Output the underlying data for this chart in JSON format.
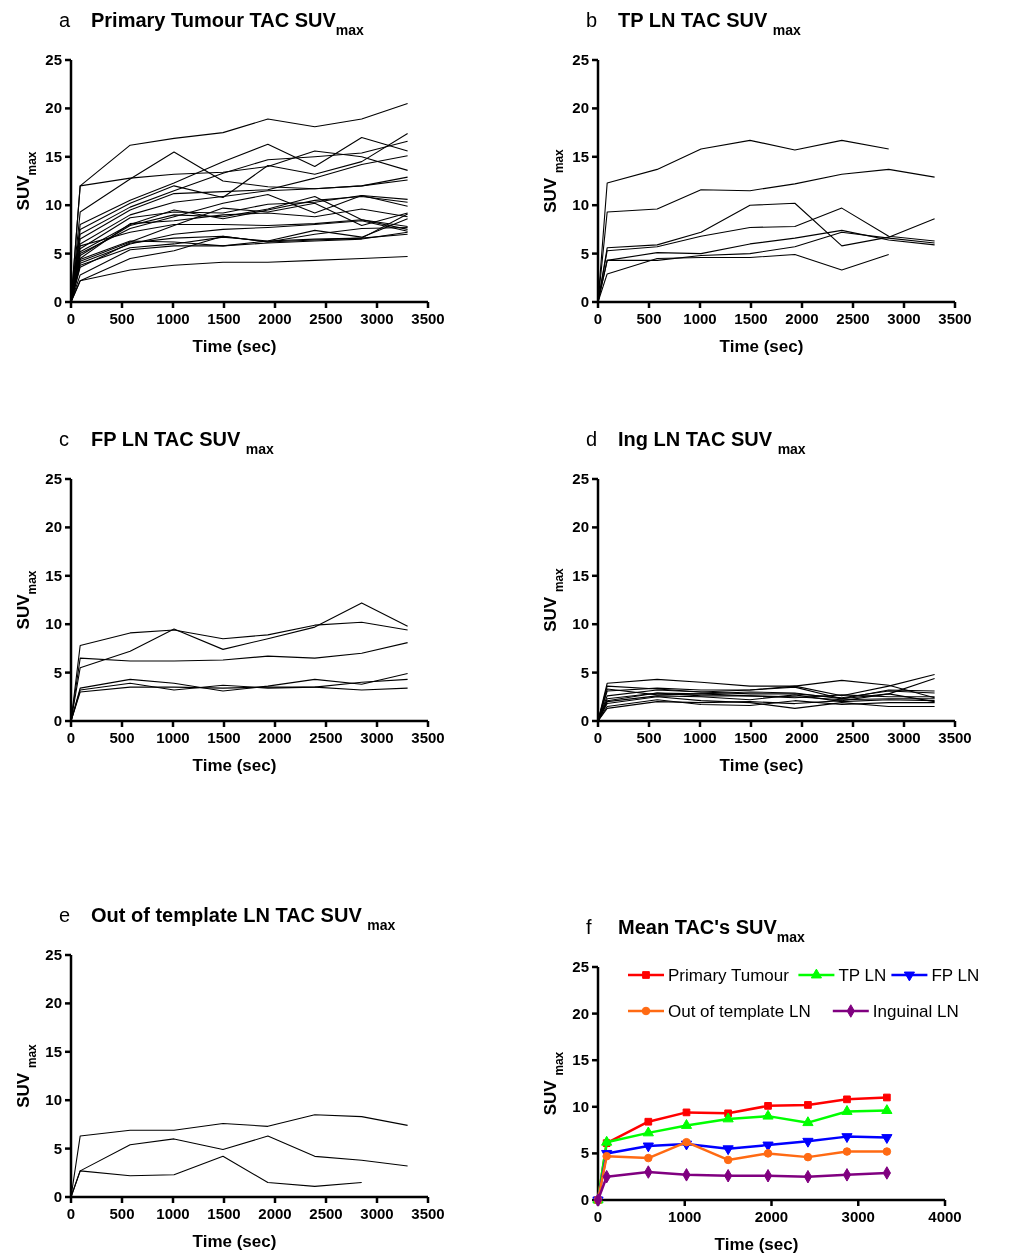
{
  "chart_data": [
    {
      "type": "line",
      "title": "Primary Tumour TAC SUV$_{max}$",
      "annotations": [
        "a"
      ],
      "xlabel": "Time (sec)",
      "ylabel": "SUV$_{max}$",
      "xlim": [
        0,
        3500
      ],
      "xticks": [
        0,
        500,
        1000,
        1500,
        2000,
        2500,
        3000,
        3500
      ],
      "ylim": [
        0,
        25
      ],
      "yticks": [
        0,
        5,
        10,
        15,
        20,
        25
      ],
      "grid": false,
      "legend": false,
      "marker": "none",
      "line_style": "solid",
      "x": [
        0,
        90,
        580,
        1010,
        1490,
        1930,
        2390,
        2850,
        3300
      ],
      "series": [
        {
          "color": "#000000",
          "values": [
            0,
            12.0,
            16.2,
            16.9,
            17.5,
            18.9,
            18.1,
            18.9,
            20.5
          ]
        },
        {
          "color": "#000000",
          "values": [
            0,
            9.3,
            12.7,
            15.5,
            12.5,
            11.9,
            11.7,
            12.0,
            12.9
          ]
        },
        {
          "color": "#000000",
          "values": [
            0,
            12.0,
            12.8,
            13.2,
            13.4,
            14.0,
            15.6,
            15.0,
            13.6
          ]
        },
        {
          "color": "#000000",
          "values": [
            0,
            7.5,
            10.2,
            12.0,
            10.8,
            14.1,
            13.2,
            14.5,
            17.4
          ]
        },
        {
          "color": "#000000",
          "values": [
            0,
            8.0,
            10.5,
            12.3,
            14.5,
            16.3,
            14.0,
            17.0,
            15.6
          ]
        },
        {
          "color": "#000000",
          "values": [
            0,
            7.0,
            9.8,
            11.5,
            13.3,
            14.7,
            15.0,
            15.4,
            16.6
          ]
        },
        {
          "color": "#000000",
          "values": [
            0,
            6.5,
            9.5,
            11.2,
            11.4,
            11.6,
            12.8,
            14.2,
            15.1
          ]
        },
        {
          "color": "#000000",
          "values": [
            0,
            6.0,
            9.0,
            10.3,
            10.9,
            11.5,
            11.7,
            12.0,
            12.6
          ]
        },
        {
          "color": "#000000",
          "values": [
            0,
            5.5,
            8.7,
            9.3,
            9.2,
            10.1,
            10.3,
            11.0,
            10.6
          ]
        },
        {
          "color": "#000000",
          "values": [
            0,
            5.2,
            8.0,
            9.5,
            8.6,
            9.5,
            10.5,
            10.9,
            10.3
          ]
        },
        {
          "color": "#000000",
          "values": [
            0,
            5.0,
            7.6,
            8.8,
            10.2,
            11.1,
            9.2,
            11.0,
            9.9
          ]
        },
        {
          "color": "#000000",
          "values": [
            0,
            4.8,
            7.9,
            9.0,
            8.8,
            9.6,
            10.9,
            8.5,
            7.5
          ]
        },
        {
          "color": "#000000",
          "values": [
            0,
            4.5,
            8.1,
            8.4,
            9.0,
            9.2,
            8.8,
            9.6,
            8.8
          ]
        },
        {
          "color": "#000000",
          "values": [
            0,
            5.8,
            7.2,
            8.0,
            8.0,
            7.9,
            8.1,
            8.5,
            7.8
          ]
        },
        {
          "color": "#000000",
          "values": [
            0,
            4.2,
            6.2,
            7.9,
            9.7,
            9.3,
            10.2,
            7.9,
            9.2
          ]
        },
        {
          "color": "#000000",
          "values": [
            0,
            4.0,
            6.0,
            7.0,
            7.5,
            7.7,
            8.0,
            8.4,
            7.3
          ]
        },
        {
          "color": "#000000",
          "values": [
            0,
            3.6,
            6.1,
            6.6,
            6.8,
            6.2,
            6.4,
            6.6,
            7.0
          ]
        },
        {
          "color": "#000000",
          "values": [
            0,
            4.4,
            6.3,
            6.2,
            5.8,
            6.3,
            7.4,
            6.7,
            8.6
          ]
        },
        {
          "color": "#000000",
          "values": [
            0,
            3.8,
            5.6,
            6.0,
            6.7,
            6.3,
            6.5,
            6.6,
            9.1
          ]
        },
        {
          "color": "#000000",
          "values": [
            0,
            2.8,
            5.4,
            5.8,
            5.8,
            6.1,
            6.3,
            6.5,
            7.2
          ]
        },
        {
          "color": "#000000",
          "values": [
            0,
            2.2,
            4.5,
            5.3,
            6.8,
            6.2,
            7.0,
            7.6,
            7.7
          ]
        },
        {
          "color": "#000000",
          "values": [
            0,
            2.2,
            3.3,
            3.8,
            4.1,
            4.1,
            4.3,
            4.5,
            4.7
          ]
        }
      ]
    },
    {
      "type": "line",
      "title": "TP LN TAC SUV $_{max}$",
      "annotations": [
        "b"
      ],
      "xlabel": "Time (sec)",
      "ylabel": "SUV $_{max}$",
      "xlim": [
        0,
        3500
      ],
      "xticks": [
        0,
        500,
        1000,
        1500,
        2000,
        2500,
        3000,
        3500
      ],
      "ylim": [
        0,
        25
      ],
      "yticks": [
        0,
        5,
        10,
        15,
        20,
        25
      ],
      "grid": false,
      "legend": false,
      "marker": "none",
      "line_style": "solid",
      "x": [
        0,
        90,
        580,
        1010,
        1490,
        1930,
        2390,
        2850,
        3300
      ],
      "series": [
        {
          "color": "#000000",
          "values": [
            0,
            12.3,
            13.7,
            15.8,
            16.7,
            15.7,
            16.7,
            15.8,
            null
          ]
        },
        {
          "color": "#000000",
          "values": [
            0,
            9.3,
            9.6,
            11.6,
            11.5,
            12.2,
            13.2,
            13.7,
            12.9
          ]
        },
        {
          "color": "#000000",
          "values": [
            0,
            5.6,
            5.9,
            7.2,
            10.0,
            10.2,
            5.8,
            6.7,
            8.6
          ]
        },
        {
          "color": "#000000",
          "values": [
            0,
            5.3,
            5.7,
            6.8,
            7.7,
            7.8,
            9.7,
            6.8,
            6.3
          ]
        },
        {
          "color": "#000000",
          "values": [
            0,
            4.3,
            5.1,
            5.0,
            6.0,
            6.6,
            7.4,
            6.4,
            5.9
          ]
        },
        {
          "color": "#000000",
          "values": [
            0,
            2.9,
            4.5,
            4.6,
            4.6,
            4.9,
            3.3,
            4.9,
            null
          ]
        },
        {
          "color": "#000000",
          "values": [
            0,
            4.3,
            4.3,
            4.8,
            5.0,
            5.7,
            7.2,
            6.6,
            6.1
          ]
        }
      ]
    },
    {
      "type": "line",
      "title": "FP LN TAC SUV $_{max}$",
      "annotations": [
        "c"
      ],
      "xlabel": "Time (sec)",
      "ylabel": "SUV$_{max}$",
      "xlim": [
        0,
        3500
      ],
      "xticks": [
        0,
        500,
        1000,
        1500,
        2000,
        2500,
        3000,
        3500
      ],
      "ylim": [
        0,
        25
      ],
      "yticks": [
        0,
        5,
        10,
        15,
        20,
        25
      ],
      "grid": false,
      "legend": false,
      "marker": "none",
      "line_style": "solid",
      "x": [
        0,
        90,
        580,
        1010,
        1490,
        1930,
        2390,
        2850,
        3300
      ],
      "series": [
        {
          "color": "#000000",
          "values": [
            0,
            7.8,
            9.1,
            9.4,
            8.5,
            8.9,
            9.9,
            10.2,
            9.4
          ]
        },
        {
          "color": "#000000",
          "values": [
            0,
            5.5,
            7.2,
            9.5,
            7.4,
            8.5,
            9.7,
            12.2,
            9.8
          ]
        },
        {
          "color": "#000000",
          "values": [
            0,
            6.5,
            6.2,
            6.2,
            6.3,
            6.7,
            6.5,
            7.0,
            8.1
          ]
        },
        {
          "color": "#000000",
          "values": [
            0,
            3.4,
            4.3,
            3.9,
            3.1,
            3.6,
            4.3,
            3.8,
            4.9
          ]
        },
        {
          "color": "#000000",
          "values": [
            0,
            3.2,
            3.9,
            3.2,
            3.7,
            3.4,
            3.5,
            4.0,
            4.3
          ]
        },
        {
          "color": "#000000",
          "values": [
            0,
            3.0,
            3.5,
            3.5,
            3.4,
            3.5,
            3.5,
            3.2,
            3.4
          ]
        }
      ]
    },
    {
      "type": "line",
      "title": "Ing LN TAC SUV $_{max}$",
      "annotations": [
        "d"
      ],
      "xlabel": "Time (sec)",
      "ylabel": "SUV $_{max}$",
      "xlim": [
        0,
        3500
      ],
      "xticks": [
        0,
        500,
        1000,
        1500,
        2000,
        2500,
        3000,
        3500
      ],
      "ylim": [
        0,
        25
      ],
      "yticks": [
        0,
        5,
        10,
        15,
        20,
        25
      ],
      "grid": false,
      "legend": false,
      "marker": "none",
      "line_style": "solid",
      "x": [
        0,
        90,
        580,
        1010,
        1490,
        1930,
        2390,
        2850,
        3300
      ],
      "series": [
        {
          "color": "#000000",
          "values": [
            0,
            3.9,
            4.3,
            4.0,
            3.6,
            3.6,
            4.2,
            3.7,
            2.4
          ]
        },
        {
          "color": "#000000",
          "values": [
            0,
            3.6,
            3.3,
            3.0,
            3.2,
            3.6,
            2.6,
            3.6,
            4.8
          ]
        },
        {
          "color": "#000000",
          "values": [
            0,
            3.1,
            3.4,
            3.2,
            3.2,
            3.5,
            2.3,
            2.8,
            4.4
          ]
        },
        {
          "color": "#000000",
          "values": [
            0,
            2.6,
            3.2,
            3.0,
            2.8,
            2.8,
            2.4,
            3.1,
            2.9
          ]
        },
        {
          "color": "#000000",
          "values": [
            0,
            2.3,
            2.9,
            2.8,
            2.6,
            2.4,
            2.7,
            2.5,
            2.5
          ]
        },
        {
          "color": "#000000",
          "values": [
            0,
            2.1,
            2.9,
            2.6,
            2.6,
            2.5,
            2.2,
            2.3,
            2.3
          ]
        },
        {
          "color": "#000000",
          "values": [
            0,
            2.0,
            2.6,
            2.5,
            2.2,
            2.7,
            2.0,
            2.2,
            2.1
          ]
        },
        {
          "color": "#000000",
          "values": [
            0,
            1.8,
            2.5,
            2.1,
            1.9,
            1.3,
            1.9,
            1.5,
            1.5
          ]
        },
        {
          "color": "#000000",
          "values": [
            0,
            1.5,
            2.2,
            1.7,
            1.6,
            2.1,
            1.7,
            1.9,
            1.9
          ]
        },
        {
          "color": "#000000",
          "values": [
            0,
            3.3,
            2.7,
            2.8,
            3.0,
            2.9,
            2.3,
            3.2,
            3.1
          ]
        },
        {
          "color": "#000000",
          "values": [
            0,
            1.3,
            2.0,
            1.9,
            2.0,
            1.8,
            2.1,
            2.8,
            2.0
          ]
        }
      ]
    },
    {
      "type": "line",
      "title": "Out of template LN TAC SUV $_{max}$",
      "annotations": [
        "e"
      ],
      "xlabel": "Time (sec)",
      "ylabel": "SUV $_{max}$",
      "xlim": [
        0,
        3500
      ],
      "xticks": [
        0,
        500,
        1000,
        1500,
        2000,
        2500,
        3000,
        3500
      ],
      "ylim": [
        0,
        25
      ],
      "yticks": [
        0,
        5,
        10,
        15,
        20,
        25
      ],
      "grid": false,
      "legend": false,
      "marker": "none",
      "line_style": "solid",
      "x": [
        0,
        90,
        580,
        1010,
        1490,
        1930,
        2390,
        2850,
        3300
      ],
      "series": [
        {
          "color": "#000000",
          "values": [
            0,
            6.3,
            6.9,
            6.9,
            7.6,
            7.3,
            8.5,
            8.3,
            7.4
          ]
        },
        {
          "color": "#000000",
          "values": [
            0,
            2.7,
            5.4,
            6.0,
            4.9,
            6.3,
            4.2,
            3.8,
            3.2
          ]
        },
        {
          "color": "#000000",
          "values": [
            0,
            2.7,
            2.2,
            2.3,
            4.2,
            1.5,
            1.1,
            1.5,
            null
          ]
        }
      ]
    },
    {
      "type": "line",
      "title": "Mean TAC's SUV$_{max}$",
      "annotations": [
        "f"
      ],
      "xlabel": "Time (sec)",
      "ylabel": "SUV $_{max}$",
      "xlim": [
        0,
        4000
      ],
      "xticks": [
        0,
        1000,
        2000,
        3000,
        4000
      ],
      "ylim": [
        0,
        25
      ],
      "yticks": [
        0,
        5,
        10,
        15,
        20,
        25
      ],
      "grid": false,
      "legend": "top",
      "line_style": "solid",
      "x": [
        0,
        100,
        580,
        1020,
        1500,
        1960,
        2420,
        2870,
        3330
      ],
      "series": [
        {
          "name": "Primary Tumour",
          "color": "#ff0000",
          "marker": "square",
          "values": [
            0,
            6.1,
            8.4,
            9.4,
            9.3,
            10.1,
            10.2,
            10.8,
            11.0
          ]
        },
        {
          "name": "TP LN",
          "color": "#00ff00",
          "marker": "triangle",
          "values": [
            0,
            6.2,
            7.2,
            8.0,
            8.7,
            9.0,
            8.3,
            9.5,
            9.6
          ]
        },
        {
          "name": "FP LN",
          "color": "#0000ff",
          "marker": "triangle-down",
          "values": [
            0,
            5.0,
            5.8,
            6.0,
            5.5,
            5.9,
            6.3,
            6.8,
            6.7
          ]
        },
        {
          "name": "Out of template LN",
          "color": "#ff6a13",
          "marker": "circle",
          "values": [
            0,
            4.7,
            4.5,
            6.2,
            4.3,
            5.0,
            4.6,
            5.2,
            5.2
          ]
        },
        {
          "name": "Inguinal LN",
          "color": "#800080",
          "marker": "diamond",
          "values": [
            0,
            2.5,
            3.0,
            2.7,
            2.6,
            2.6,
            2.5,
            2.7,
            2.9
          ]
        }
      ]
    }
  ]
}
